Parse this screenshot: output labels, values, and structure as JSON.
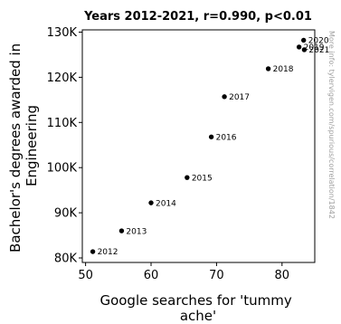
{
  "chart_data": {
    "type": "scatter",
    "title": "Years 2012-2021, r=0.990, p<0.01",
    "xlabel": "Google searches for 'tummy ache'",
    "xlabel_lines": [
      "Google searches for 'tummy",
      "ache'"
    ],
    "ylabel": "Bachelor's degrees awarded in Engineering",
    "ylabel_lines": [
      "Bachelor's degrees awarded in",
      "Engineering"
    ],
    "xlim": [
      49.5,
      85
    ],
    "ylim": [
      79000,
      130500
    ],
    "x_ticks": [
      50,
      60,
      70,
      80
    ],
    "x_tick_labels": [
      "50",
      "60",
      "70",
      "80"
    ],
    "y_ticks": [
      80000,
      90000,
      100000,
      110000,
      120000,
      130000
    ],
    "y_tick_labels": [
      "80K",
      "90K",
      "100K",
      "110K",
      "120K",
      "130K"
    ],
    "grid": false,
    "marker_color": "#000000",
    "points": [
      {
        "label": "2012",
        "x": 51.1,
        "y": 81400
      },
      {
        "label": "2013",
        "x": 55.5,
        "y": 86000
      },
      {
        "label": "2014",
        "x": 60.0,
        "y": 92200
      },
      {
        "label": "2015",
        "x": 65.5,
        "y": 97800
      },
      {
        "label": "2016",
        "x": 69.2,
        "y": 106800
      },
      {
        "label": "2017",
        "x": 71.2,
        "y": 115700
      },
      {
        "label": "2018",
        "x": 77.9,
        "y": 121900
      },
      {
        "label": "2019",
        "x": 82.6,
        "y": 126700
      },
      {
        "label": "2020",
        "x": 83.3,
        "y": 128200
      },
      {
        "label": "2021",
        "x": 83.4,
        "y": 126100
      }
    ],
    "credit": "More info: tylervigen.com/spurious/correlation/1842"
  }
}
